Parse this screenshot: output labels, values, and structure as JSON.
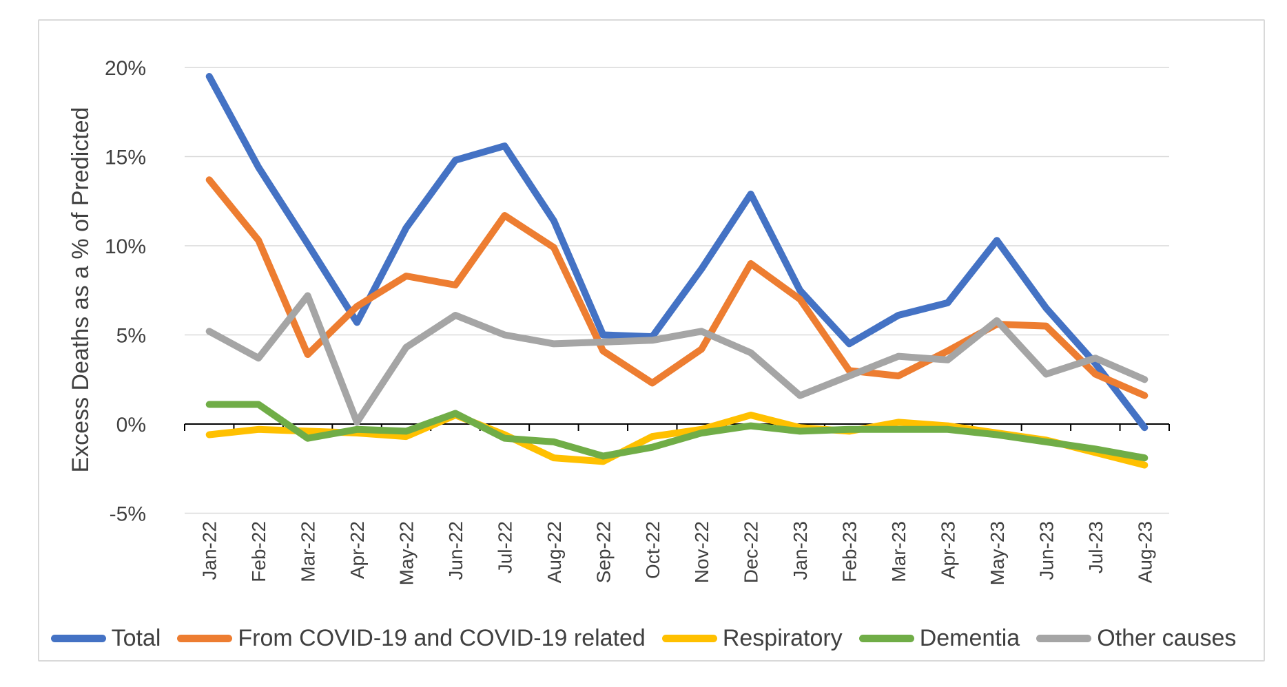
{
  "chart_data": {
    "type": "line",
    "title": "",
    "xlabel": "",
    "ylabel": "Excess Deaths as a % of Predicted",
    "ylim": [
      -5,
      20
    ],
    "yticks": [
      20,
      15,
      10,
      5,
      0,
      -5
    ],
    "ytick_suffix": "%",
    "grid": "horizontal",
    "legend_position": "bottom",
    "categories": [
      "Jan-22",
      "Feb-22",
      "Mar-22",
      "Apr-22",
      "May-22",
      "Jun-22",
      "Jul-22",
      "Aug-22",
      "Sep-22",
      "Oct-22",
      "Nov-22",
      "Dec-22",
      "Jan-23",
      "Feb-23",
      "Mar-23",
      "Apr-23",
      "May-23",
      "Jun-23",
      "Jul-23",
      "Aug-23"
    ],
    "series": [
      {
        "name": "Total",
        "color": "#4472C4",
        "values": [
          19.5,
          14.4,
          10.1,
          5.7,
          11.0,
          14.8,
          15.6,
          11.4,
          5.0,
          4.9,
          8.7,
          12.9,
          7.5,
          4.5,
          6.1,
          6.8,
          10.3,
          6.5,
          3.4,
          -0.2
        ]
      },
      {
        "name": "From COVID-19 and COVID-19 related",
        "color": "#ED7D31",
        "values": [
          13.7,
          10.3,
          3.9,
          6.6,
          8.3,
          7.8,
          11.7,
          9.9,
          4.1,
          2.3,
          4.2,
          9.0,
          7.0,
          3.0,
          2.7,
          4.1,
          5.6,
          5.5,
          2.8,
          1.6
        ]
      },
      {
        "name": "Respiratory",
        "color": "#FFC000",
        "values": [
          -0.6,
          -0.3,
          -0.4,
          -0.5,
          -0.7,
          0.5,
          -0.6,
          -1.9,
          -2.1,
          -0.7,
          -0.3,
          0.5,
          -0.2,
          -0.4,
          0.1,
          -0.1,
          -0.5,
          -0.9,
          -1.6,
          -2.3
        ]
      },
      {
        "name": "Dementia",
        "color": "#70AD47",
        "values": [
          1.1,
          1.1,
          -0.8,
          -0.3,
          -0.4,
          0.6,
          -0.8,
          -1.0,
          -1.8,
          -1.3,
          -0.5,
          -0.1,
          -0.4,
          -0.3,
          -0.3,
          -0.3,
          -0.6,
          -1.0,
          -1.4,
          -1.9
        ]
      },
      {
        "name": "Other causes",
        "color": "#A5A5A5",
        "values": [
          5.2,
          3.7,
          7.2,
          0.1,
          4.3,
          6.1,
          5.0,
          4.5,
          4.6,
          4.7,
          5.2,
          4.0,
          1.6,
          2.7,
          3.8,
          3.6,
          5.8,
          2.8,
          3.7,
          2.5
        ]
      }
    ]
  },
  "colors": {
    "text": "#404040",
    "gridline": "#d9d9d9",
    "axis": "#000000",
    "frame_border": "#d9d9d9",
    "background": "#ffffff"
  }
}
